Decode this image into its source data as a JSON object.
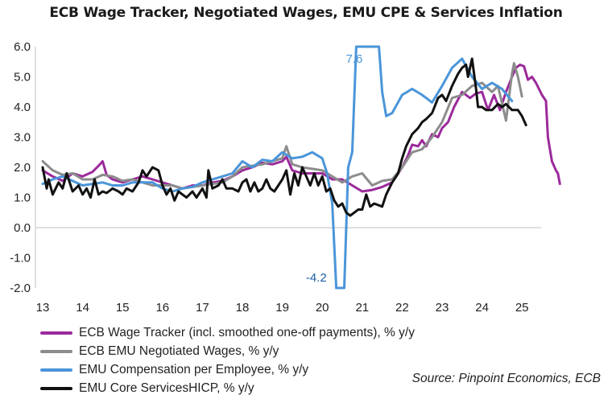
{
  "chart_data": {
    "type": "line",
    "title": "ECB Wage Tracker, Negotiated Wages, EMU CPE & Services Inflation",
    "xlabel": "",
    "ylabel": "",
    "xlim": [
      13.0,
      25.95
    ],
    "ylim": [
      -2.0,
      6.0
    ],
    "x_ticks": [
      "13",
      "14",
      "15",
      "16",
      "17",
      "18",
      "19",
      "20",
      "21",
      "22",
      "23",
      "24",
      "25"
    ],
    "y_ticks": [
      "6.0",
      "5.0",
      "4.0",
      "3.0",
      "2.0",
      "1.0",
      "0.0",
      "-1.0",
      "-2.0"
    ],
    "gridlines": false,
    "legend_position": "bottom-left",
    "annotations": [
      {
        "text": "7.6",
        "x": 20.8,
        "y": 5.6,
        "color": "#4a95d9"
      },
      {
        "text": "-4.2",
        "x": 19.85,
        "y": -1.65,
        "color": "#1f5fa8"
      }
    ],
    "series": [
      {
        "name": "ECB Wage Tracker (incl. smoothed one-off payments), % y/y",
        "color": "#9b2a9b",
        "points": [
          [
            13.0,
            1.9
          ],
          [
            13.25,
            1.7
          ],
          [
            13.5,
            1.55
          ],
          [
            13.75,
            1.8
          ],
          [
            14.0,
            1.7
          ],
          [
            14.25,
            1.85
          ],
          [
            14.4,
            2.05
          ],
          [
            14.5,
            2.2
          ],
          [
            14.6,
            1.75
          ],
          [
            14.75,
            1.6
          ],
          [
            15.0,
            1.5
          ],
          [
            15.25,
            1.6
          ],
          [
            15.5,
            1.7
          ],
          [
            15.75,
            1.6
          ],
          [
            16.0,
            1.5
          ],
          [
            16.25,
            1.4
          ],
          [
            16.5,
            1.3
          ],
          [
            16.75,
            1.4
          ],
          [
            17.0,
            1.4
          ],
          [
            17.25,
            1.5
          ],
          [
            17.5,
            1.55
          ],
          [
            17.75,
            1.7
          ],
          [
            18.0,
            1.9
          ],
          [
            18.25,
            2.0
          ],
          [
            18.5,
            2.15
          ],
          [
            18.75,
            2.1
          ],
          [
            19.0,
            2.2
          ],
          [
            19.1,
            2.35
          ],
          [
            19.25,
            1.9
          ],
          [
            19.5,
            1.8
          ],
          [
            19.75,
            1.8
          ],
          [
            20.0,
            1.8
          ],
          [
            20.25,
            1.6
          ],
          [
            20.5,
            1.6
          ],
          [
            20.75,
            1.4
          ],
          [
            21.0,
            1.2
          ],
          [
            21.25,
            1.25
          ],
          [
            21.5,
            1.35
          ],
          [
            21.75,
            1.5
          ],
          [
            22.0,
            2.0
          ],
          [
            22.15,
            2.4
          ],
          [
            22.25,
            2.75
          ],
          [
            22.4,
            2.7
          ],
          [
            22.5,
            2.9
          ],
          [
            22.6,
            2.7
          ],
          [
            22.75,
            3.1
          ],
          [
            22.9,
            3.0
          ],
          [
            23.0,
            3.3
          ],
          [
            23.15,
            3.5
          ],
          [
            23.3,
            4.0
          ],
          [
            23.5,
            4.5
          ],
          [
            23.7,
            4.3
          ],
          [
            23.85,
            4.45
          ],
          [
            24.0,
            4.5
          ],
          [
            24.15,
            3.9
          ],
          [
            24.3,
            4.4
          ],
          [
            24.45,
            3.9
          ],
          [
            24.6,
            4.5
          ],
          [
            24.75,
            5.0
          ],
          [
            24.85,
            5.3
          ],
          [
            24.95,
            5.4
          ],
          [
            25.05,
            5.35
          ],
          [
            25.15,
            4.9
          ],
          [
            25.25,
            5.0
          ],
          [
            25.35,
            4.8
          ],
          [
            25.5,
            4.4
          ],
          [
            25.6,
            4.2
          ],
          [
            25.65,
            3.0
          ],
          [
            25.75,
            2.2
          ],
          [
            25.85,
            1.9
          ],
          [
            25.9,
            1.8
          ],
          [
            25.95,
            1.45
          ]
        ]
      },
      {
        "name": "ECB EMU Negotiated Wages, % y/y",
        "color": "#8c8c8c",
        "points": [
          [
            13.0,
            2.2
          ],
          [
            13.25,
            1.9
          ],
          [
            13.5,
            1.75
          ],
          [
            13.75,
            1.8
          ],
          [
            14.0,
            1.6
          ],
          [
            14.25,
            1.6
          ],
          [
            14.5,
            1.75
          ],
          [
            14.75,
            1.7
          ],
          [
            15.0,
            1.55
          ],
          [
            15.25,
            1.6
          ],
          [
            15.5,
            1.5
          ],
          [
            15.75,
            1.4
          ],
          [
            16.0,
            1.4
          ],
          [
            16.25,
            1.4
          ],
          [
            16.5,
            1.3
          ],
          [
            16.75,
            1.35
          ],
          [
            17.0,
            1.4
          ],
          [
            17.25,
            1.45
          ],
          [
            17.5,
            1.5
          ],
          [
            17.75,
            1.7
          ],
          [
            18.0,
            2.0
          ],
          [
            18.25,
            2.05
          ],
          [
            18.5,
            2.1
          ],
          [
            18.75,
            2.2
          ],
          [
            19.0,
            2.3
          ],
          [
            19.1,
            2.7
          ],
          [
            19.25,
            2.1
          ],
          [
            19.5,
            2.0
          ],
          [
            19.75,
            1.95
          ],
          [
            20.0,
            1.9
          ],
          [
            20.25,
            1.7
          ],
          [
            20.5,
            1.5
          ],
          [
            20.75,
            1.7
          ],
          [
            21.0,
            1.8
          ],
          [
            21.25,
            1.4
          ],
          [
            21.5,
            1.55
          ],
          [
            21.75,
            1.6
          ],
          [
            22.0,
            2.0
          ],
          [
            22.25,
            2.5
          ],
          [
            22.5,
            2.6
          ],
          [
            22.75,
            3.0
          ],
          [
            23.0,
            3.5
          ],
          [
            23.25,
            4.3
          ],
          [
            23.5,
            4.4
          ],
          [
            23.75,
            4.7
          ],
          [
            24.0,
            4.8
          ],
          [
            24.25,
            4.5
          ],
          [
            24.4,
            4.7
          ],
          [
            24.6,
            3.55
          ],
          [
            24.75,
            5.1
          ],
          [
            24.8,
            5.45
          ],
          [
            24.9,
            5.0
          ],
          [
            25.0,
            4.35
          ]
        ]
      },
      {
        "name": "EMU Compensation per Employee, % y/y",
        "color": "#4a95d9",
        "points": [
          [
            13.0,
            1.45
          ],
          [
            13.25,
            1.6
          ],
          [
            13.5,
            1.7
          ],
          [
            13.75,
            1.55
          ],
          [
            14.0,
            1.4
          ],
          [
            14.25,
            1.45
          ],
          [
            14.5,
            1.5
          ],
          [
            14.75,
            1.4
          ],
          [
            15.0,
            1.4
          ],
          [
            15.25,
            1.5
          ],
          [
            15.5,
            1.5
          ],
          [
            15.75,
            1.5
          ],
          [
            16.0,
            1.3
          ],
          [
            16.25,
            1.2
          ],
          [
            16.5,
            1.3
          ],
          [
            16.75,
            1.35
          ],
          [
            17.0,
            1.5
          ],
          [
            17.25,
            1.6
          ],
          [
            17.5,
            1.7
          ],
          [
            17.75,
            1.8
          ],
          [
            18.0,
            2.2
          ],
          [
            18.25,
            2.0
          ],
          [
            18.5,
            2.25
          ],
          [
            18.75,
            2.2
          ],
          [
            19.0,
            2.5
          ],
          [
            19.25,
            2.3
          ],
          [
            19.5,
            2.35
          ],
          [
            19.75,
            2.5
          ],
          [
            20.0,
            2.3
          ],
          [
            20.12,
            1.8
          ],
          [
            20.25,
            0.8
          ],
          [
            20.35,
            -2.0
          ],
          [
            20.55,
            -2.0
          ],
          [
            20.65,
            2.0
          ],
          [
            20.75,
            2.5
          ],
          [
            20.85,
            6.0
          ],
          [
            21.42,
            6.0
          ],
          [
            21.5,
            4.5
          ],
          [
            21.6,
            3.7
          ],
          [
            21.75,
            3.8
          ],
          [
            22.0,
            4.4
          ],
          [
            22.25,
            4.6
          ],
          [
            22.5,
            4.4
          ],
          [
            22.75,
            4.15
          ],
          [
            23.0,
            4.7
          ],
          [
            23.25,
            5.3
          ],
          [
            23.5,
            5.6
          ],
          [
            23.75,
            5.0
          ],
          [
            24.0,
            4.6
          ],
          [
            24.25,
            4.8
          ],
          [
            24.5,
            4.6
          ],
          [
            24.75,
            4.2
          ]
        ]
      },
      {
        "name": "EMU Core ServicesHICP, % y/y",
        "color": "#111111",
        "points": [
          [
            13.0,
            2.0
          ],
          [
            13.1,
            1.3
          ],
          [
            13.15,
            1.6
          ],
          [
            13.25,
            1.1
          ],
          [
            13.4,
            1.5
          ],
          [
            13.5,
            1.3
          ],
          [
            13.6,
            1.8
          ],
          [
            13.75,
            1.2
          ],
          [
            13.9,
            1.4
          ],
          [
            14.0,
            1.1
          ],
          [
            14.1,
            1.3
          ],
          [
            14.2,
            1.0
          ],
          [
            14.3,
            1.6
          ],
          [
            14.4,
            1.1
          ],
          [
            14.5,
            1.2
          ],
          [
            14.6,
            1.15
          ],
          [
            14.75,
            1.3
          ],
          [
            14.9,
            1.2
          ],
          [
            15.0,
            1.1
          ],
          [
            15.1,
            1.3
          ],
          [
            15.25,
            1.2
          ],
          [
            15.4,
            1.5
          ],
          [
            15.5,
            1.9
          ],
          [
            15.6,
            1.7
          ],
          [
            15.75,
            2.0
          ],
          [
            15.9,
            1.9
          ],
          [
            16.0,
            1.4
          ],
          [
            16.1,
            1.1
          ],
          [
            16.2,
            1.3
          ],
          [
            16.3,
            0.9
          ],
          [
            16.4,
            1.2
          ],
          [
            16.5,
            1.1
          ],
          [
            16.6,
            1.0
          ],
          [
            16.75,
            1.2
          ],
          [
            16.85,
            1.0
          ],
          [
            17.0,
            1.3
          ],
          [
            17.1,
            1.0
          ],
          [
            17.15,
            1.9
          ],
          [
            17.25,
            1.3
          ],
          [
            17.4,
            1.4
          ],
          [
            17.5,
            1.6
          ],
          [
            17.6,
            1.3
          ],
          [
            17.75,
            1.3
          ],
          [
            17.9,
            1.2
          ],
          [
            18.0,
            1.5
          ],
          [
            18.1,
            1.6
          ],
          [
            18.2,
            1.2
          ],
          [
            18.3,
            1.5
          ],
          [
            18.4,
            1.2
          ],
          [
            18.5,
            1.3
          ],
          [
            18.6,
            1.6
          ],
          [
            18.7,
            1.3
          ],
          [
            18.8,
            1.2
          ],
          [
            19.0,
            1.6
          ],
          [
            19.1,
            1.9
          ],
          [
            19.2,
            1.1
          ],
          [
            19.3,
            1.8
          ],
          [
            19.4,
            1.4
          ],
          [
            19.5,
            2.0
          ],
          [
            19.6,
            1.7
          ],
          [
            19.7,
            1.4
          ],
          [
            19.8,
            1.8
          ],
          [
            19.9,
            1.4
          ],
          [
            20.0,
            1.7
          ],
          [
            20.1,
            1.2
          ],
          [
            20.2,
            1.3
          ],
          [
            20.3,
            0.9
          ],
          [
            20.4,
            0.7
          ],
          [
            20.5,
            0.8
          ],
          [
            20.6,
            0.5
          ],
          [
            20.7,
            0.4
          ],
          [
            20.8,
            0.5
          ],
          [
            20.9,
            0.6
          ],
          [
            21.0,
            0.6
          ],
          [
            21.1,
            1.1
          ],
          [
            21.2,
            0.7
          ],
          [
            21.3,
            0.8
          ],
          [
            21.5,
            0.7
          ],
          [
            21.6,
            1.1
          ],
          [
            21.75,
            1.5
          ],
          [
            21.9,
            1.8
          ],
          [
            22.0,
            2.3
          ],
          [
            22.1,
            2.7
          ],
          [
            22.25,
            3.1
          ],
          [
            22.4,
            3.3
          ],
          [
            22.5,
            3.5
          ],
          [
            22.6,
            3.6
          ],
          [
            22.75,
            3.8
          ],
          [
            22.9,
            4.3
          ],
          [
            23.0,
            4.4
          ],
          [
            23.1,
            4.2
          ],
          [
            23.25,
            4.7
          ],
          [
            23.4,
            5.1
          ],
          [
            23.5,
            5.3
          ],
          [
            23.6,
            5.4
          ],
          [
            23.65,
            5.0
          ],
          [
            23.75,
            5.6
          ],
          [
            23.85,
            4.6
          ],
          [
            23.9,
            4.0
          ],
          [
            24.0,
            4.0
          ],
          [
            24.1,
            3.9
          ],
          [
            24.25,
            3.9
          ],
          [
            24.4,
            4.1
          ],
          [
            24.5,
            4.0
          ],
          [
            24.6,
            4.1
          ],
          [
            24.75,
            3.9
          ],
          [
            24.9,
            3.9
          ],
          [
            25.0,
            3.7
          ],
          [
            25.1,
            3.4
          ]
        ]
      }
    ]
  },
  "source": "Source: Pinpoint Economics, ECB"
}
